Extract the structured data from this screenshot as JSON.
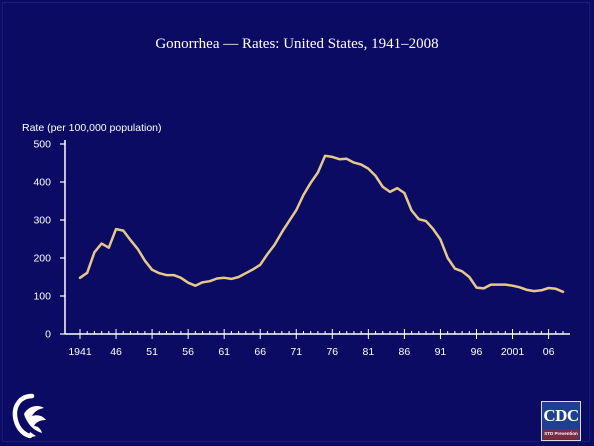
{
  "slide": {
    "title": "Gonorrhea — Rates: United States, 1941–2008"
  },
  "chart_data": {
    "type": "line",
    "title": "Gonorrhea — Rates: United States, 1941–2008",
    "xlabel": "",
    "ylabel": "Rate (per 100,000 population)",
    "xlim": [
      1941,
      2008
    ],
    "ylim": [
      0,
      500
    ],
    "yticks": [
      0,
      100,
      200,
      300,
      400,
      500
    ],
    "ytick_labels": [
      "0",
      "100",
      "200",
      "300",
      "400",
      "500"
    ],
    "xticks": [
      1941,
      1946,
      1951,
      1956,
      1961,
      1966,
      1971,
      1976,
      1981,
      1986,
      1991,
      1996,
      2001,
      2006
    ],
    "xtick_labels": [
      "1941",
      "46",
      "51",
      "56",
      "61",
      "66",
      "71",
      "76",
      "81",
      "86",
      "91",
      "96",
      "2001",
      "06"
    ],
    "grid": false,
    "line_color": "#e6c98a",
    "series": [
      {
        "x": [
          1941,
          1942,
          1943,
          1944,
          1945,
          1946,
          1947,
          1948,
          1949,
          1950,
          1951,
          1952,
          1953,
          1954,
          1955,
          1956,
          1957,
          1958,
          1959,
          1960,
          1961,
          1962,
          1963,
          1964,
          1965,
          1966,
          1967,
          1968,
          1969,
          1970,
          1971,
          1972,
          1973,
          1974,
          1975,
          1976,
          1977,
          1978,
          1979,
          1980,
          1981,
          1982,
          1983,
          1984,
          1985,
          1986,
          1987,
          1988,
          1989,
          1990,
          1991,
          1992,
          1993,
          1994,
          1995,
          1996,
          1997,
          1998,
          1999,
          2000,
          2001,
          2002,
          2003,
          2004,
          2005,
          2006,
          2007,
          2008
        ],
        "values": [
          148,
          161,
          215,
          238,
          227,
          276,
          272,
          247,
          224,
          193,
          169,
          160,
          155,
          155,
          148,
          135,
          127,
          136,
          139,
          146,
          148,
          145,
          150,
          160,
          170,
          182,
          210,
          235,
          268,
          297,
          326,
          366,
          398,
          425,
          469,
          466,
          460,
          461,
          451,
          446,
          435,
          416,
          387,
          374,
          384,
          371,
          325,
          302,
          297,
          276,
          249,
          200,
          172,
          165,
          150,
          122,
          120,
          130,
          130,
          130,
          127,
          123,
          116,
          113,
          115,
          121,
          119,
          111
        ]
      }
    ]
  },
  "logos": {
    "cdc_text": "CDC",
    "cdc_subtext": "STD Prevention",
    "hhs_icon": "hhs-eagle-icon"
  }
}
